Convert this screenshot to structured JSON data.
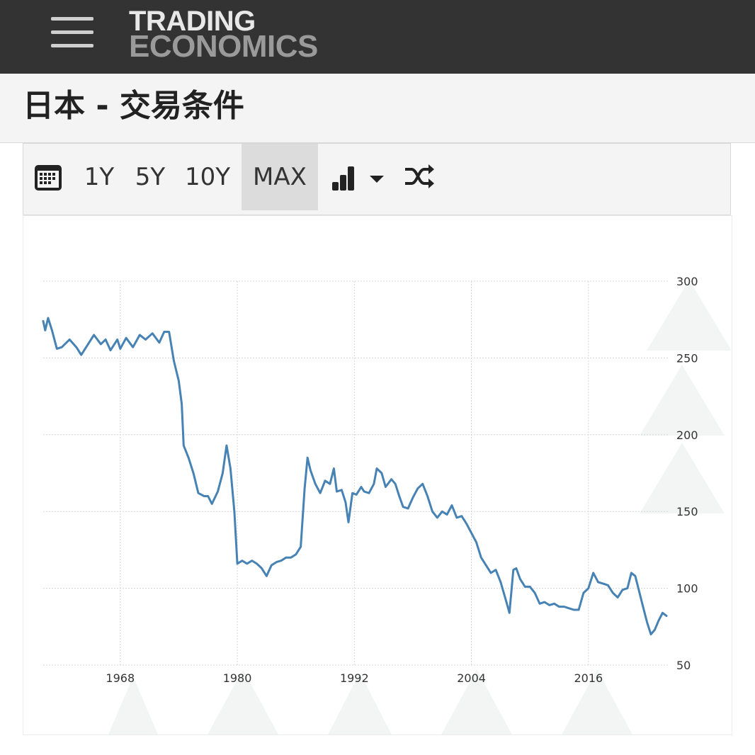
{
  "header": {
    "logo_line1": "TRADING",
    "logo_line2": "ECONOMICS",
    "menu_icon": "hamburger-menu-icon"
  },
  "page": {
    "title": "日本 - 交易条件"
  },
  "toolbar": {
    "calendar_icon": "calendar-icon",
    "ranges": [
      "1Y",
      "5Y",
      "10Y",
      "MAX"
    ],
    "active_range": "MAX",
    "chart_type_icon": "bar-chart-icon",
    "dropdown_icon": "caret-down-icon",
    "compare_icon": "shuffle-icon"
  },
  "colors": {
    "line": "#4682b4",
    "header_bg": "#333333"
  },
  "chart_data": {
    "type": "line",
    "title": "",
    "xlabel": "",
    "ylabel": "",
    "xlim": [
      1960.1,
      2024.0
    ],
    "ylim": [
      50,
      300
    ],
    "yticks": [
      "300",
      "250",
      "200",
      "150",
      "100",
      "50"
    ],
    "xticks": [
      "1968",
      "1980",
      "1992",
      "2004",
      "2016"
    ],
    "grid": true,
    "y_axis_side": "right",
    "series": [
      {
        "values": [
          [
            1960.1,
            274
          ],
          [
            1960.3,
            268
          ],
          [
            1960.6,
            276
          ],
          [
            1961.0,
            268
          ],
          [
            1961.5,
            256
          ],
          [
            1962.0,
            257
          ],
          [
            1962.8,
            262
          ],
          [
            1963.5,
            257
          ],
          [
            1964.0,
            252
          ],
          [
            1964.6,
            258
          ],
          [
            1965.3,
            265
          ],
          [
            1966.0,
            259
          ],
          [
            1966.5,
            262
          ],
          [
            1967.0,
            255
          ],
          [
            1967.7,
            262
          ],
          [
            1968.0,
            256
          ],
          [
            1968.6,
            263
          ],
          [
            1969.3,
            257
          ],
          [
            1970.0,
            265
          ],
          [
            1970.6,
            262
          ],
          [
            1971.3,
            266
          ],
          [
            1972.0,
            260
          ],
          [
            1972.5,
            267
          ],
          [
            1973.0,
            267
          ],
          [
            1973.5,
            248
          ],
          [
            1974.0,
            235
          ],
          [
            1974.3,
            220
          ],
          [
            1974.5,
            193
          ],
          [
            1975.0,
            185
          ],
          [
            1975.5,
            175
          ],
          [
            1976.0,
            162
          ],
          [
            1976.6,
            160
          ],
          [
            1977.0,
            160
          ],
          [
            1977.4,
            155
          ],
          [
            1978.0,
            163
          ],
          [
            1978.5,
            175
          ],
          [
            1978.9,
            193
          ],
          [
            1979.3,
            178
          ],
          [
            1979.7,
            150
          ],
          [
            1980.0,
            116
          ],
          [
            1980.5,
            118
          ],
          [
            1981.0,
            116
          ],
          [
            1981.5,
            118
          ],
          [
            1982.0,
            116
          ],
          [
            1982.5,
            113
          ],
          [
            1983.0,
            108
          ],
          [
            1983.5,
            115
          ],
          [
            1984.0,
            117
          ],
          [
            1984.5,
            118
          ],
          [
            1985.0,
            120
          ],
          [
            1985.5,
            120
          ],
          [
            1986.0,
            122
          ],
          [
            1986.5,
            127
          ],
          [
            1986.9,
            165
          ],
          [
            1987.2,
            185
          ],
          [
            1987.5,
            177
          ],
          [
            1988.0,
            168
          ],
          [
            1988.5,
            162
          ],
          [
            1989.0,
            170
          ],
          [
            1989.5,
            168
          ],
          [
            1989.9,
            178
          ],
          [
            1990.2,
            163
          ],
          [
            1990.7,
            164
          ],
          [
            1991.1,
            156
          ],
          [
            1991.4,
            143
          ],
          [
            1991.8,
            162
          ],
          [
            1992.2,
            161
          ],
          [
            1992.7,
            166
          ],
          [
            1993.0,
            163
          ],
          [
            1993.5,
            162
          ],
          [
            1994.0,
            168
          ],
          [
            1994.3,
            178
          ],
          [
            1994.8,
            175
          ],
          [
            1995.2,
            166
          ],
          [
            1995.8,
            171
          ],
          [
            1996.2,
            168
          ],
          [
            1996.6,
            160
          ],
          [
            1997.0,
            153
          ],
          [
            1997.5,
            152
          ],
          [
            1998.0,
            159
          ],
          [
            1998.5,
            165
          ],
          [
            1999.0,
            168
          ],
          [
            1999.5,
            160
          ],
          [
            2000.0,
            150
          ],
          [
            2000.5,
            146
          ],
          [
            2001.0,
            150
          ],
          [
            2001.5,
            148
          ],
          [
            2002.0,
            154
          ],
          [
            2002.5,
            146
          ],
          [
            2003.0,
            147
          ],
          [
            2003.5,
            142
          ],
          [
            2004.0,
            136
          ],
          [
            2004.5,
            130
          ],
          [
            2005.0,
            120
          ],
          [
            2005.5,
            115
          ],
          [
            2006.0,
            110
          ],
          [
            2006.5,
            112
          ],
          [
            2007.0,
            104
          ],
          [
            2007.5,
            93
          ],
          [
            2007.9,
            84
          ],
          [
            2008.3,
            112
          ],
          [
            2008.6,
            113
          ],
          [
            2009.0,
            106
          ],
          [
            2009.5,
            101
          ],
          [
            2010.0,
            101
          ],
          [
            2010.5,
            97
          ],
          [
            2011.0,
            90
          ],
          [
            2011.5,
            91
          ],
          [
            2012.0,
            89
          ],
          [
            2012.5,
            90
          ],
          [
            2013.0,
            88
          ],
          [
            2013.5,
            88
          ],
          [
            2014.0,
            87
          ],
          [
            2014.5,
            86
          ],
          [
            2015.0,
            86
          ],
          [
            2015.5,
            97
          ],
          [
            2016.0,
            100
          ],
          [
            2016.5,
            110
          ],
          [
            2017.0,
            104
          ],
          [
            2017.5,
            103
          ],
          [
            2018.0,
            102
          ],
          [
            2018.5,
            97
          ],
          [
            2019.0,
            94
          ],
          [
            2019.5,
            99
          ],
          [
            2020.0,
            100
          ],
          [
            2020.4,
            110
          ],
          [
            2020.8,
            108
          ],
          [
            2021.2,
            98
          ],
          [
            2021.6,
            88
          ],
          [
            2022.0,
            78
          ],
          [
            2022.4,
            70
          ],
          [
            2022.8,
            73
          ],
          [
            2023.2,
            79
          ],
          [
            2023.6,
            84
          ],
          [
            2024.0,
            82
          ]
        ]
      }
    ]
  }
}
